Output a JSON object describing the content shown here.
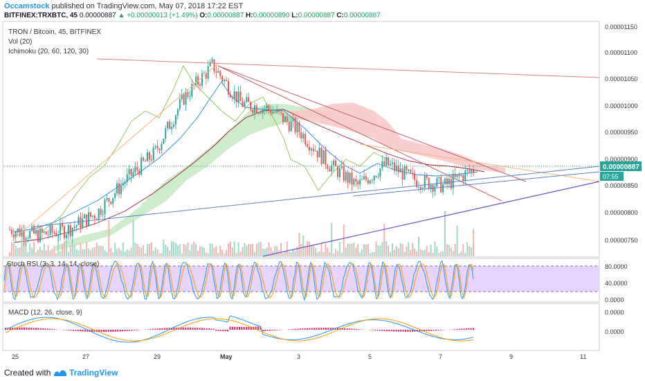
{
  "header": {
    "author": "Occamstock",
    "published": "published on TradingView.com, May 07, 2018 17:22 EST",
    "symbol": "BITFINEX:TRXBTC, 45",
    "last": "0.00000887",
    "change": "+0.00000013 (+1.49%)",
    "o_label": "O:",
    "o_value": "0.00000887",
    "h_label": "H:",
    "h_value": "0.00000890",
    "l_label": "L:",
    "l_value": "0.00000887",
    "c_label": "C:",
    "c_value": "0.00000887"
  },
  "legend": {
    "pair": "TRON / Bitcoin, 45, BITFINEX",
    "vol": "Vol (20)",
    "ichimoku": "Ichimoku (20, 60, 120, 30)",
    "stoch": "Stoch RSI (3, 3, 14, 14, close)",
    "macd": "MACD (12, 26, close, 9)"
  },
  "price_axis": {
    "ticks": [
      "0.00001150",
      "0.00001100",
      "0.00001050",
      "0.00001000",
      "0.00000950",
      "0.00000900",
      "0.00000850",
      "0.00000800",
      "0.00000750"
    ],
    "current_label": "0.00000887",
    "countdown": "07:55"
  },
  "stoch_axis": {
    "ticks": [
      "80.0000",
      "40.0000",
      "0.0000"
    ]
  },
  "macd_axis": {
    "ticks": [
      "0.0000",
      "0.0000"
    ]
  },
  "time_axis": {
    "ticks": [
      "25",
      "27",
      "29",
      "May",
      "3",
      "5",
      "7",
      "9",
      "11"
    ]
  },
  "footer": {
    "created": "Created with",
    "brand": "TradingView"
  },
  "colors": {
    "up": "#26a69a",
    "down": "#ef5350",
    "accent": "#2196f3",
    "stoch_k": "#2196f3",
    "stoch_d": "#ff9800",
    "stoch_band": "#cc99ff",
    "cloud_bull": "#b9e6b9",
    "cloud_bear": "#f7bfbf",
    "lagging": "#8bc34a",
    "trend_orange": "#f7b27a",
    "trend_red": "#c2616b",
    "trend_blue": "#5b7fc7",
    "trend_purple": "#6a4fcf"
  },
  "chart_data": [
    {
      "type": "candlestick",
      "title": "TRON / Bitcoin, 45, BITFINEX",
      "x_ticks": [
        "25",
        "27",
        "29",
        "May",
        "3",
        "5",
        "7",
        "9",
        "11"
      ],
      "ylim": [
        7.3e-06,
        1.16e-05
      ],
      "approx_path_points": [
        [
          "Apr 24",
          7.8e-06
        ],
        [
          "Apr 25",
          7.7e-06
        ],
        [
          "Apr 26",
          7.8e-06
        ],
        [
          "Apr 27",
          8.1e-06
        ],
        [
          "Apr 28",
          8.7e-06
        ],
        [
          "Apr 29",
          9.2e-06
        ],
        [
          "Apr 30",
          1.02e-05
        ],
        [
          "May 1",
          1.08e-05
        ],
        [
          "May 1 pm",
          1.01e-05
        ],
        [
          "May 2",
          1e-05
        ],
        [
          "May 3",
          9.6e-06
        ],
        [
          "May 3 pm",
          9e-06
        ],
        [
          "May 4",
          8.6e-06
        ],
        [
          "May 5",
          9e-06
        ],
        [
          "May 6",
          8.7e-06
        ],
        [
          "May 7",
          8.6e-06
        ],
        [
          "May 7 pm",
          8.9e-06
        ]
      ],
      "last_price": 8.87e-06
    },
    {
      "type": "bar",
      "title": "Vol (20)"
    },
    {
      "type": "line",
      "title": "Stoch RSI (3, 3, 14, 14, close)",
      "ylim": [
        0,
        100
      ],
      "bands": [
        20,
        80
      ]
    },
    {
      "type": "line",
      "title": "MACD (12, 26, close, 9)"
    }
  ]
}
